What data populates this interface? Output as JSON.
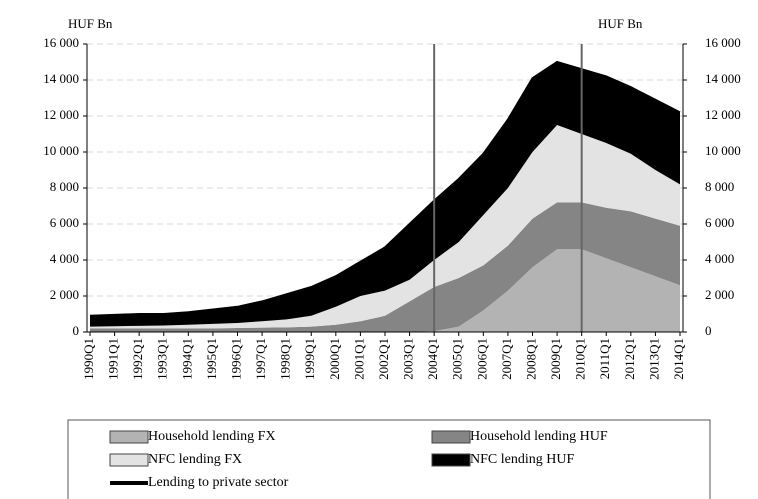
{
  "chart_data": {
    "type": "stacked_area",
    "unit_left": "HUF Bn",
    "unit_right": "HUF Bn",
    "categories": [
      "1990Q1",
      "1991Q1",
      "1992Q1",
      "1993Q1",
      "1994Q1",
      "1995Q1",
      "1996Q1",
      "1997Q1",
      "1998Q1",
      "1999Q1",
      "2000Q1",
      "2001Q1",
      "2002Q1",
      "2003Q1",
      "2004Q1",
      "2005Q1",
      "2006Q1",
      "2007Q1",
      "2008Q1",
      "2009Q1",
      "2010Q1",
      "2011Q1",
      "2012Q1",
      "2013Q1",
      "2014Q1"
    ],
    "series": [
      {
        "name": "Household lending FX",
        "color": "#b3b3b3",
        "values": [
          0,
          0,
          0,
          0,
          0,
          0,
          0,
          0,
          0,
          0,
          0,
          0,
          0,
          0,
          50,
          300,
          1200,
          2300,
          3600,
          4600,
          4600,
          4100,
          3600,
          3100,
          2600
        ]
      },
      {
        "name": "Household lending HUF",
        "color": "#858585",
        "values": [
          200,
          200,
          200,
          200,
          200,
          200,
          220,
          240,
          260,
          300,
          400,
          600,
          900,
          1700,
          2450,
          2700,
          2500,
          2500,
          2700,
          2600,
          2600,
          2800,
          3100,
          3200,
          3300
        ]
      },
      {
        "name": "NFC lending FX",
        "color": "#e3e3e3",
        "values": [
          100,
          120,
          140,
          160,
          200,
          250,
          280,
          360,
          440,
          600,
          1000,
          1400,
          1400,
          1200,
          1500,
          2000,
          2800,
          3200,
          3700,
          4300,
          3800,
          3600,
          3200,
          2700,
          2300
        ]
      },
      {
        "name": "NFC lending HUF",
        "color": "#000000",
        "values": [
          600,
          630,
          660,
          640,
          700,
          800,
          900,
          1100,
          1400,
          1600,
          1700,
          1900,
          2400,
          3100,
          3300,
          3500,
          3400,
          3800,
          4100,
          3500,
          3600,
          3700,
          3700,
          3900,
          4000
        ]
      }
    ],
    "line_series": {
      "name": "Lending to private sector",
      "color": "#000000",
      "values": [
        900,
        950,
        1000,
        1000,
        1100,
        1250,
        1400,
        1700,
        2100,
        2500,
        3100,
        3900,
        4700,
        6000,
        7300,
        8500,
        9900,
        11800,
        14100,
        15000,
        14600,
        14200,
        13600,
        12900,
        12200
      ]
    },
    "vlines": [
      "2004Q1",
      "2010Q1"
    ],
    "ylim": [
      0,
      16000
    ],
    "yticks": [
      0,
      {
        "value": 2000,
        "label": "2 000"
      },
      {
        "value": 4000,
        "label": "4 000"
      },
      {
        "value": 6000,
        "label": "6 000"
      },
      {
        "value": 8000,
        "label": "8 000"
      },
      {
        "value": 10000,
        "label": "10 000"
      },
      {
        "value": 12000,
        "label": "12 000"
      },
      {
        "value": 14000,
        "label": "14 000"
      },
      {
        "value": 16000,
        "label": "16 000"
      }
    ],
    "y2lim": [
      0,
      16000
    ],
    "y2ticks": [
      0,
      {
        "value": 2000,
        "label": "2 000"
      },
      {
        "value": 4000,
        "label": "4 000"
      },
      {
        "value": 6000,
        "label": "6 000"
      },
      {
        "value": 8000,
        "label": "8 000"
      },
      {
        "value": 10000,
        "label": "10 000"
      },
      {
        "value": 12000,
        "label": "12 000"
      },
      {
        "value": 14000,
        "label": "14 000"
      },
      {
        "value": 16000,
        "label": "16 000"
      }
    ],
    "grid": true
  }
}
